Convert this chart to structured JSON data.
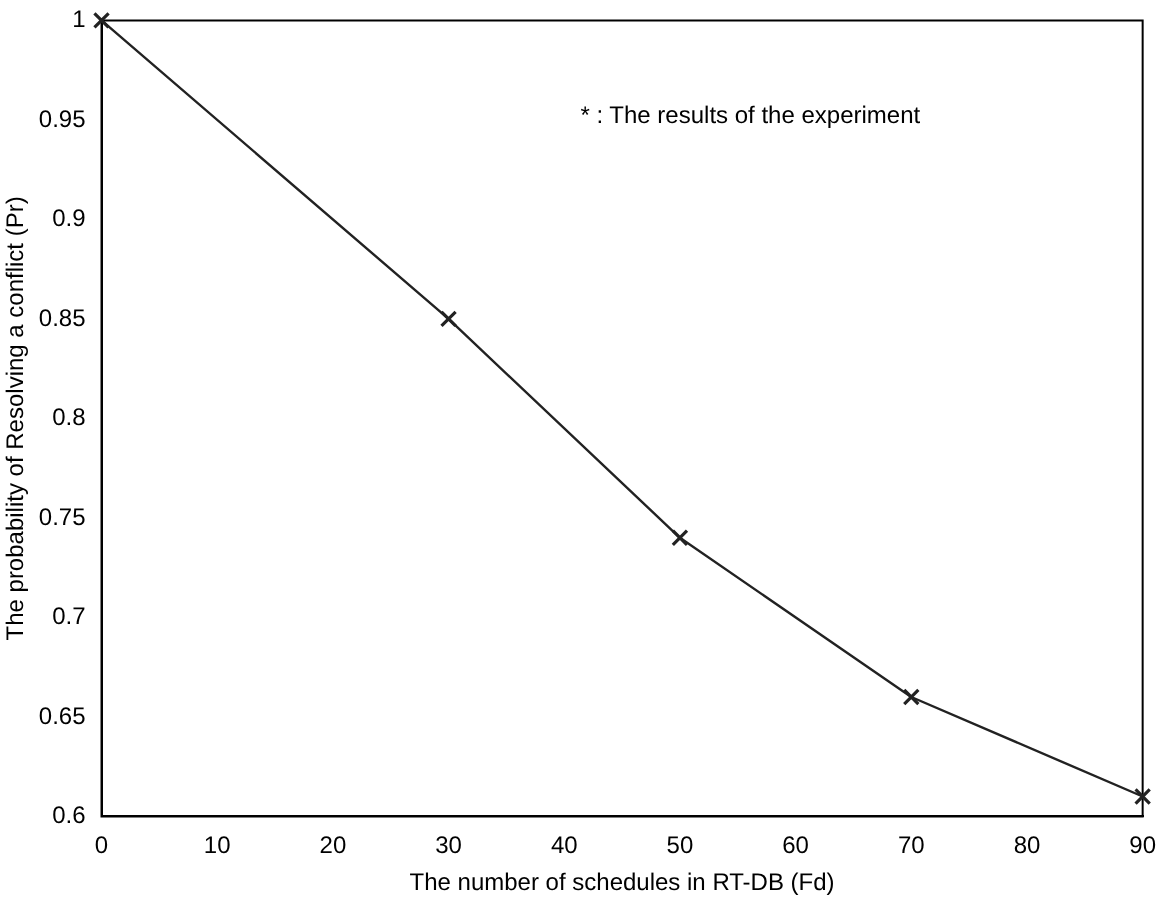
{
  "chart_data": {
    "type": "line",
    "xlabel": "The number of schedules in RT-DB (Fd)",
    "ylabel": "The probability of Resolving a conflict (Pr)",
    "x": [
      0,
      30,
      50,
      70,
      90
    ],
    "series": [
      {
        "color": "#222222",
        "values": [
          1,
          0.85,
          0.74,
          0.66,
          0.61
        ]
      }
    ],
    "xlim": [
      0,
      90
    ],
    "xticks": [
      0,
      10,
      20,
      30,
      40,
      50,
      60,
      70,
      80,
      90
    ],
    "ylim": [
      0.6,
      1
    ],
    "yticks": [
      0.6,
      0.65,
      0.7,
      0.75,
      0.8,
      0.85,
      0.9,
      0.95,
      1
    ],
    "marker": "cross",
    "line_style": "solid",
    "grid": false,
    "legend": false,
    "annotations": [
      "* : The results of the experiment"
    ]
  }
}
